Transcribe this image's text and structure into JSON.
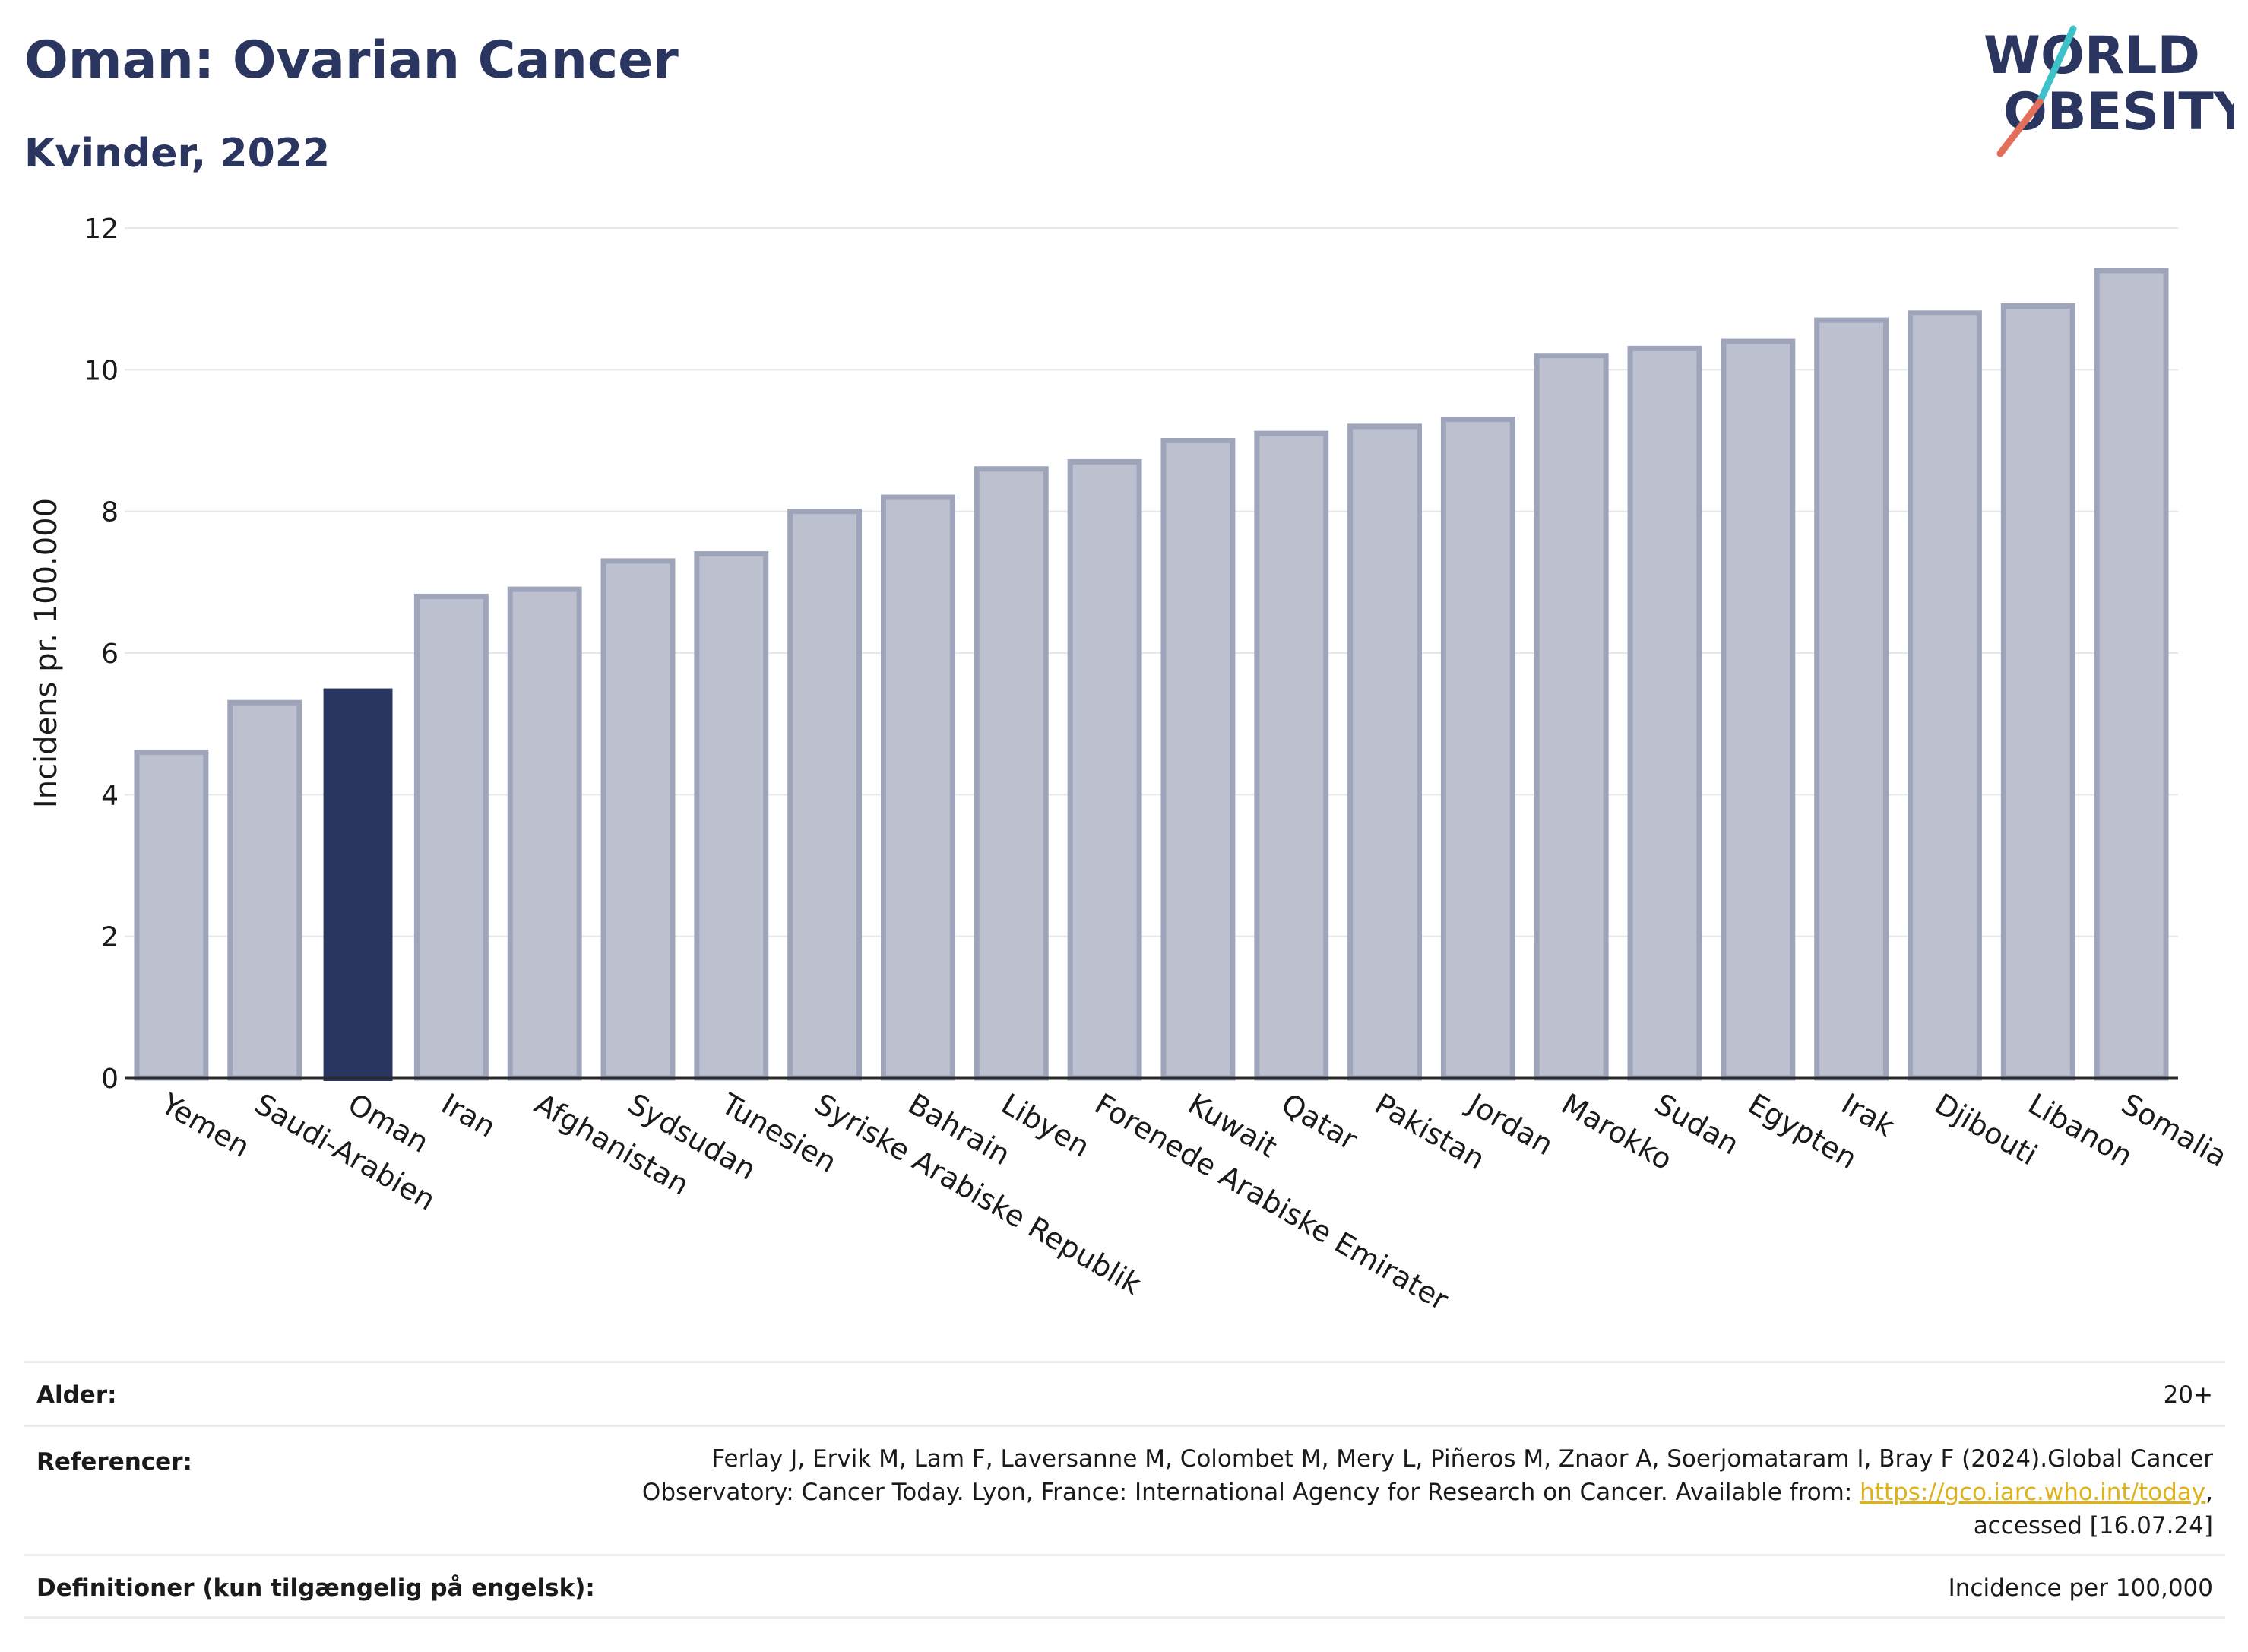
{
  "header": {
    "title": "Oman: Ovarian Cancer",
    "subtitle": "Kvinder, 2022"
  },
  "logo": {
    "line1": "WORLD",
    "line2": "OBESITY",
    "accent_colors": [
      "#3ec1c9",
      "#e36f5a"
    ]
  },
  "chart_data": {
    "type": "bar",
    "ylabel": "Incidens pr. 100.000",
    "xlabel": "",
    "ylim": [
      0,
      12
    ],
    "yticks": [
      0,
      2,
      4,
      6,
      8,
      10,
      12
    ],
    "grid": true,
    "highlight": "Oman",
    "colors": {
      "bar": "#bcc0cf",
      "bar_edge": "#9ea4ba",
      "highlight": "#2b3660"
    },
    "categories": [
      "Yemen",
      "Saudi-Arabien",
      "Oman",
      "Iran",
      "Afghanistan",
      "Sydsudan",
      "Tunesien",
      "Syriske Arabiske Republik",
      "Bahrain",
      "Libyen",
      "Forenede Arabiske Emirater",
      "Kuwait",
      "Qatar",
      "Pakistan",
      "Jordan",
      "Marokko",
      "Sudan",
      "Egypten",
      "Irak",
      "Djibouti",
      "Libanon",
      "Somalia"
    ],
    "values": [
      4.6,
      5.3,
      5.5,
      6.8,
      6.9,
      7.3,
      7.4,
      8.0,
      8.2,
      8.6,
      8.7,
      9.0,
      9.1,
      9.2,
      9.3,
      10.2,
      10.3,
      10.4,
      10.7,
      10.8,
      10.9,
      11.4
    ]
  },
  "meta": {
    "age_label": "Alder:",
    "age_value": "20+",
    "references_label": "Referencer:",
    "references_line1": "Ferlay J, Ervik M, Lam F, Laversanne M, Colombet M, Mery L, Piñeros M, Znaor A, Soerjomataram I, Bray F (2024).Global Cancer",
    "references_line2_pre": "Observatory: Cancer Today. Lyon, France: International Agency for Research on Cancer. Available from: ",
    "references_link": "https://gco.iarc.who.int/today",
    "references_line2_post": ",",
    "references_line3": "accessed [16.07.24]",
    "definitions_label": "Definitioner (kun tilgængelig på engelsk):",
    "definitions_value": "Incidence per 100,000"
  }
}
